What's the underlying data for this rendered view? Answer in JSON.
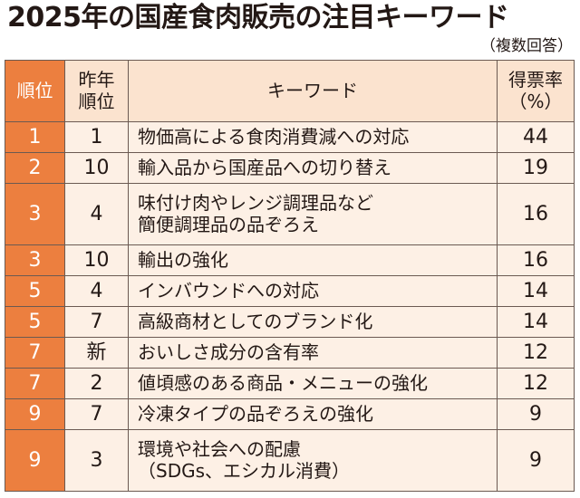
{
  "title": "2025年の国産食肉販売の注目キーワード",
  "note": "（複数回答）",
  "columns": {
    "rank": "順位",
    "prev_rank": "昨年順位",
    "keyword": "キーワード",
    "pct": "得票率（%）"
  },
  "rows": [
    {
      "rank": "1",
      "prev": "1",
      "lines": [
        "物価高による食肉消費減への対応"
      ],
      "pct": "44"
    },
    {
      "rank": "2",
      "prev": "10",
      "lines": [
        "輸入品から国産品への切り替え"
      ],
      "pct": "19"
    },
    {
      "rank": "3",
      "prev": "4",
      "lines": [
        "味付け肉やレンジ調理品など",
        "簡便調理品の品ぞろえ"
      ],
      "pct": "16"
    },
    {
      "rank": "3",
      "prev": "10",
      "lines": [
        "輸出の強化"
      ],
      "pct": "16"
    },
    {
      "rank": "5",
      "prev": "4",
      "lines": [
        "インバウンドへの対応"
      ],
      "pct": "14"
    },
    {
      "rank": "5",
      "prev": "7",
      "lines": [
        "高級商材としてのブランド化"
      ],
      "pct": "14"
    },
    {
      "rank": "7",
      "prev": "新",
      "lines": [
        "おいしさ成分の含有率"
      ],
      "pct": "12"
    },
    {
      "rank": "7",
      "prev": "2",
      "lines": [
        "値頃感のある商品・メニューの強化"
      ],
      "pct": "12"
    },
    {
      "rank": "9",
      "prev": "7",
      "lines": [
        "冷凍タイプの品ぞろえの強化"
      ],
      "pct": "9"
    },
    {
      "rank": "9",
      "prev": "3",
      "lines": [
        "環境や社会への配慮",
        "（SDGs、エシカル消費）"
      ],
      "pct": "9"
    }
  ],
  "colors": {
    "rank_bg": "#ec7f3f",
    "header_bg": "#fbe3cf",
    "cell_bg": "#fdf0e5",
    "border": "#6b5a52"
  }
}
